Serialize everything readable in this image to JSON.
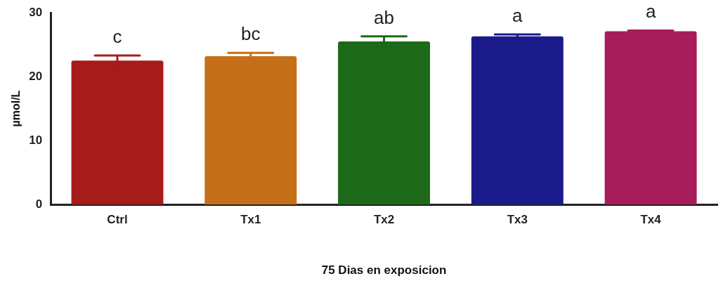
{
  "chart_data": {
    "type": "bar",
    "xlabel": "75 Dias en exposicion",
    "ylabel": "µmol/L",
    "categories": [
      "Ctrl",
      "Tx1",
      "Tx2",
      "Tx3",
      "Tx4"
    ],
    "values": [
      22.5,
      23.2,
      25.5,
      26.3,
      27.1
    ],
    "errors": [
      0.8,
      0.5,
      0.8,
      0.3,
      0.1
    ],
    "colors": [
      "#a81b1b",
      "#c56f18",
      "#1c6a19",
      "#1b1a8a",
      "#a71c5b"
    ],
    "ylim": [
      0,
      30
    ],
    "yticks": [
      0,
      10,
      20,
      30
    ],
    "grid": false,
    "legend": false,
    "annotations": [
      "c",
      "bc",
      "ab",
      "a",
      "a"
    ]
  }
}
